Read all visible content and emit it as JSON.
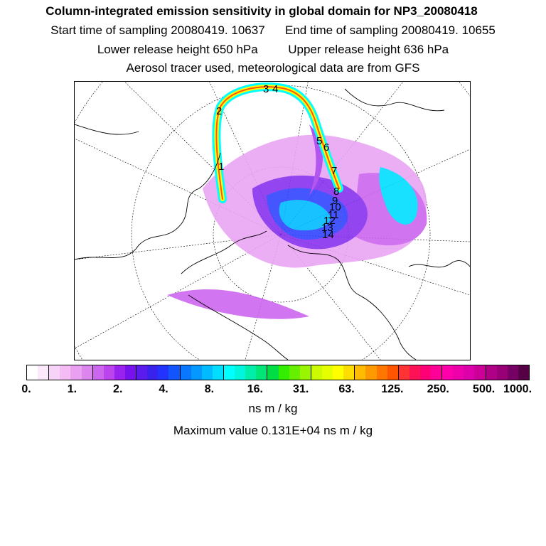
{
  "header": {
    "title": "Column-integrated emission sensitivity in global domain for NP3_20080418",
    "sampling_start": "Start time of sampling 20080419. 10637",
    "sampling_end": "End time of sampling 20080419. 10655",
    "lower_release": "Lower release height  650 hPa",
    "upper_release": "Upper release height  636 hPa",
    "tracer_note": "Aerosol tracer used, meteorological data are from GFS"
  },
  "map": {
    "projection": "north polar stereographic",
    "trajectory_labels": [
      "1",
      "2",
      "3",
      "4",
      "5",
      "6",
      "7",
      "8",
      "9",
      "10",
      "11",
      "12",
      "13",
      "14"
    ]
  },
  "colorbar": {
    "colors": [
      "#ffffff",
      "#fbe8fb",
      "#f7d3f7",
      "#f3bdf3",
      "#eaa0f0",
      "#dd85ee",
      "#cc66ee",
      "#bb44ee",
      "#9a22ee",
      "#7711ee",
      "#5a1cee",
      "#3a22ee",
      "#2233ff",
      "#1155ff",
      "#0a77ff",
      "#0599ff",
      "#00bbff",
      "#00ddff",
      "#00ffff",
      "#00f5dd",
      "#00eeaa",
      "#00e677",
      "#00dd44",
      "#33ee00",
      "#66f000",
      "#99f500",
      "#ccfa00",
      "#e6ff00",
      "#ffff00",
      "#ffdd00",
      "#ffbb00",
      "#ff9900",
      "#ff7700",
      "#ff5500",
      "#ff3333",
      "#ff1155",
      "#ff0077",
      "#ff0099",
      "#ff00aa",
      "#ee00aa",
      "#dd00aa",
      "#cc0099",
      "#b00088",
      "#990077",
      "#770066",
      "#550044"
    ],
    "tick_labels": [
      "0.",
      "1.",
      "2.",
      "4.",
      "8.",
      "16.",
      "31.",
      "63.",
      "125.",
      "250.",
      "500.",
      "1000."
    ],
    "units": "ns m / kg"
  },
  "footer": {
    "max_value": "Maximum value  0.131E+04 ns m / kg"
  }
}
